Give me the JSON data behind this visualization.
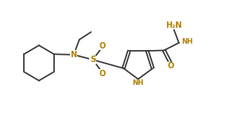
{
  "bg_color": "#ffffff",
  "bond_color": "#3a3a3a",
  "heteroatom_color": "#b08000",
  "line_width": 1.3,
  "fig_width": 3.13,
  "fig_height": 1.6,
  "dpi": 100,
  "font_size": 7.0,
  "font_size_small": 6.2,
  "xlim": [
    0,
    10
  ],
  "ylim": [
    0,
    5
  ]
}
